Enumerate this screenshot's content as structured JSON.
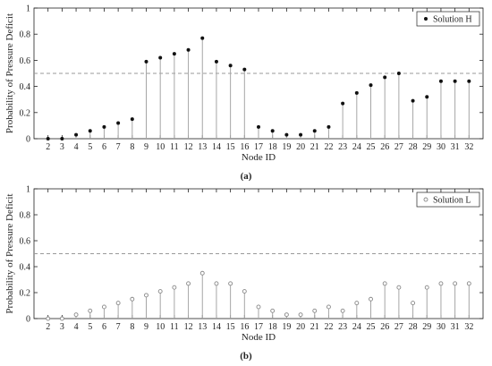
{
  "chart_data": [
    {
      "panel_label": "(a)",
      "type": "stem",
      "legend": {
        "label": "Solution H",
        "marker": "filled-circle",
        "position": "top-right"
      },
      "xlabel": "Node ID",
      "ylabel": "Probability of Pressure Deficit",
      "xlim": [
        1,
        33
      ],
      "ylim": [
        0,
        1
      ],
      "yticks": [
        0,
        0.2,
        0.4,
        0.6,
        0.8,
        1
      ],
      "ytick_labels": [
        "0",
        "0.2",
        "0.4",
        "0.6",
        "0.8",
        "1"
      ],
      "reference_line": 0.5,
      "categories": [
        2,
        3,
        4,
        5,
        6,
        7,
        8,
        9,
        10,
        11,
        12,
        13,
        14,
        15,
        16,
        17,
        18,
        19,
        20,
        21,
        22,
        23,
        24,
        25,
        26,
        27,
        28,
        29,
        30,
        31,
        32
      ],
      "values": [
        0.0,
        0.0,
        0.03,
        0.06,
        0.09,
        0.12,
        0.15,
        0.59,
        0.62,
        0.65,
        0.68,
        0.77,
        0.59,
        0.56,
        0.53,
        0.09,
        0.06,
        0.03,
        0.03,
        0.06,
        0.09,
        0.27,
        0.35,
        0.41,
        0.47,
        0.5,
        0.29,
        0.32,
        0.44,
        0.44,
        0.44
      ]
    },
    {
      "panel_label": "(b)",
      "type": "stem",
      "legend": {
        "label": "Solution L",
        "marker": "open-circle",
        "position": "top-right"
      },
      "xlabel": "Node ID",
      "ylabel": "Probability of Pressure Deficit",
      "xlim": [
        1,
        33
      ],
      "ylim": [
        0,
        1
      ],
      "yticks": [
        0,
        0.2,
        0.4,
        0.6,
        0.8,
        1
      ],
      "ytick_labels": [
        "0",
        "0.2",
        "0.4",
        "0.6",
        "0.8",
        "1"
      ],
      "reference_line": 0.5,
      "categories": [
        2,
        3,
        4,
        5,
        6,
        7,
        8,
        9,
        10,
        11,
        12,
        13,
        14,
        15,
        16,
        17,
        18,
        19,
        20,
        21,
        22,
        23,
        24,
        25,
        26,
        27,
        28,
        29,
        30,
        31,
        32
      ],
      "values": [
        0.0,
        0.0,
        0.03,
        0.06,
        0.09,
        0.12,
        0.15,
        0.18,
        0.21,
        0.24,
        0.27,
        0.35,
        0.27,
        0.27,
        0.21,
        0.09,
        0.06,
        0.03,
        0.03,
        0.06,
        0.09,
        0.06,
        0.12,
        0.15,
        0.27,
        0.24,
        0.12,
        0.24,
        0.27,
        0.27,
        0.27
      ]
    }
  ],
  "colors": {
    "axis": "#222222",
    "stem": "#a6a6a6",
    "marker": "#111111",
    "open_marker": "#888888",
    "reference": "#9a9a9a"
  }
}
